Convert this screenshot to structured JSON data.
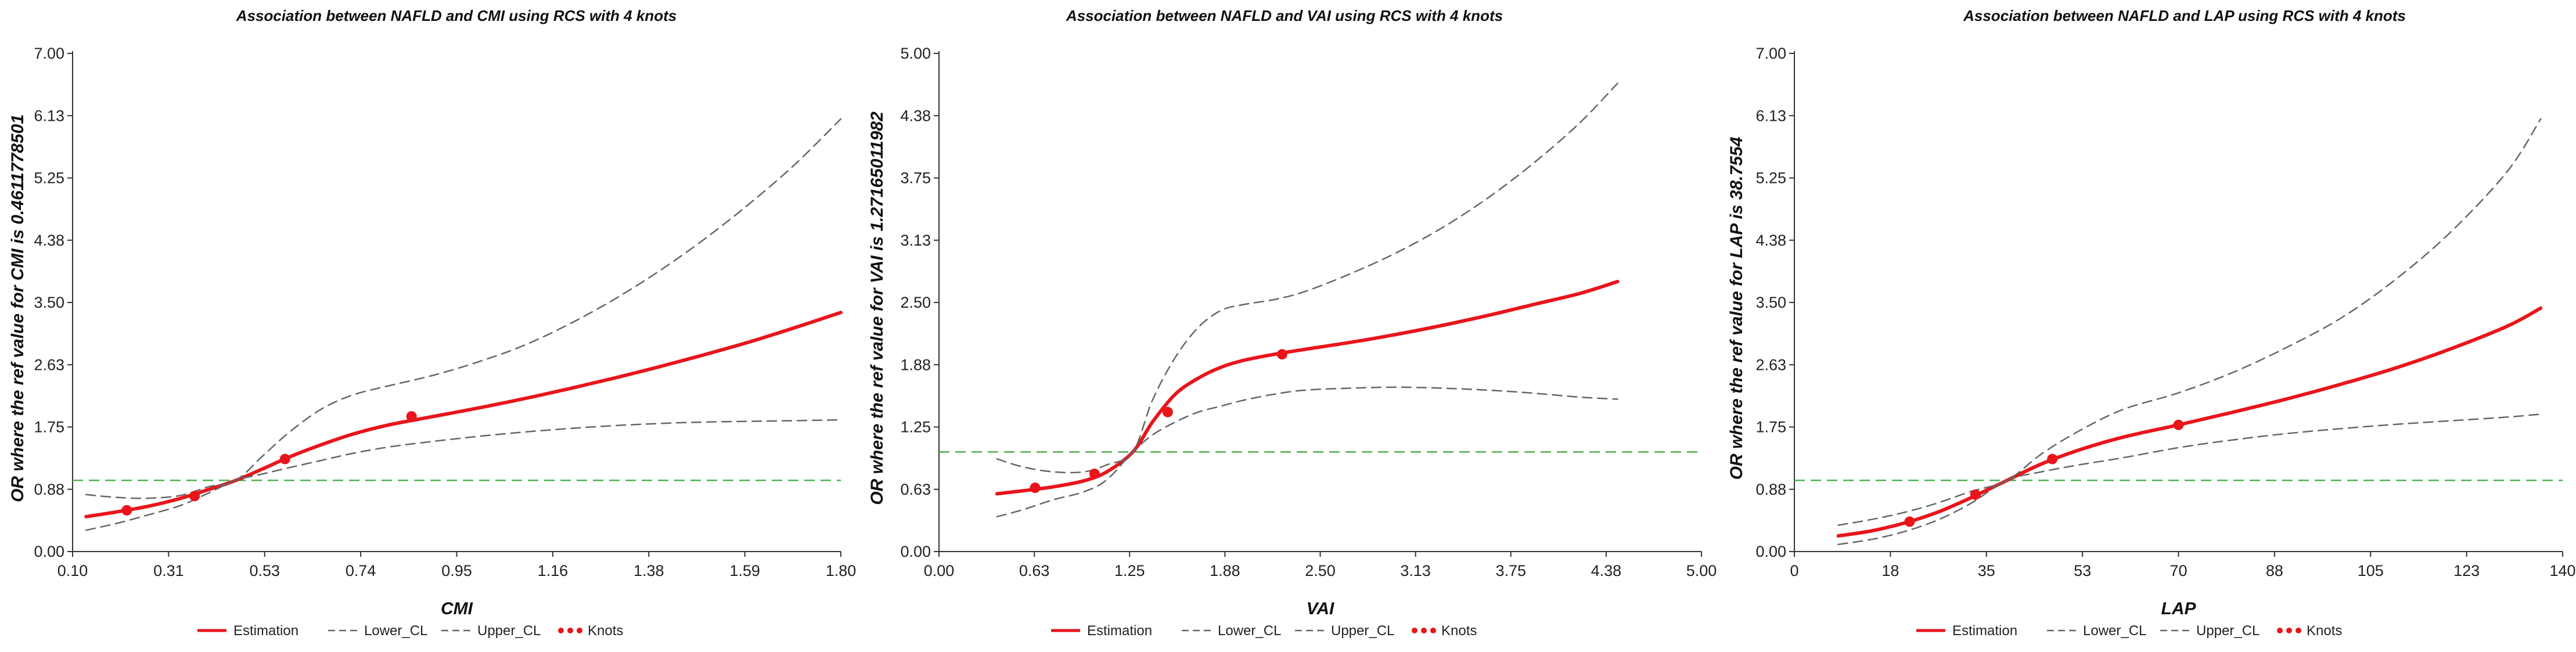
{
  "colors": {
    "estimation": "#e8151b",
    "ci": "#666666",
    "reference": "#4caf50",
    "axis": "#333333"
  },
  "legend_items": [
    "Estimation",
    "Lower_CL",
    "Upper_CL",
    "Knots"
  ],
  "chart_data": [
    {
      "type": "line",
      "title": "Association between NAFLD and CMI using RCS with 4 knots",
      "xlabel": "CMI",
      "ylabel": "OR where the ref value for CMI is 0.4611778501",
      "xlim": [
        0.1,
        1.8
      ],
      "ylim": [
        0.0,
        7.0
      ],
      "xticks": [
        "0.10",
        "0.31",
        "0.53",
        "0.74",
        "0.95",
        "1.16",
        "1.38",
        "1.59",
        "1.80"
      ],
      "yticks": [
        "0.00",
        "0.88",
        "1.75",
        "2.63",
        "3.50",
        "4.38",
        "5.25",
        "6.13",
        "7.00"
      ],
      "reference_line": 1.0,
      "x": [
        0.13,
        0.2,
        0.27,
        0.34,
        0.4,
        0.4612,
        0.52,
        0.58,
        0.65,
        0.72,
        0.8,
        0.9,
        1.0,
        1.1,
        1.2,
        1.3,
        1.4,
        1.5,
        1.6,
        1.7,
        1.8
      ],
      "series": [
        {
          "name": "Estimation",
          "values": [
            0.49,
            0.56,
            0.64,
            0.75,
            0.87,
            1.0,
            1.16,
            1.33,
            1.5,
            1.65,
            1.78,
            1.9,
            2.02,
            2.15,
            2.29,
            2.44,
            2.6,
            2.77,
            2.95,
            3.15,
            3.36
          ]
        },
        {
          "name": "Lower_CL",
          "values": [
            0.3,
            0.4,
            0.52,
            0.65,
            0.82,
            1.0,
            1.09,
            1.18,
            1.28,
            1.38,
            1.47,
            1.55,
            1.62,
            1.68,
            1.73,
            1.77,
            1.8,
            1.82,
            1.83,
            1.84,
            1.85
          ]
        },
        {
          "name": "Upper_CL",
          "values": [
            0.8,
            0.76,
            0.75,
            0.79,
            0.91,
            1.0,
            1.34,
            1.68,
            2.0,
            2.2,
            2.33,
            2.48,
            2.67,
            2.9,
            3.2,
            3.55,
            3.95,
            4.4,
            4.9,
            5.45,
            6.08
          ]
        },
        {
          "name": "Knots",
          "points": [
            [
              0.22,
              0.58
            ],
            [
              0.37,
              0.78
            ],
            [
              0.57,
              1.3
            ],
            [
              0.85,
              1.9
            ]
          ]
        }
      ]
    },
    {
      "type": "line",
      "title": "Association between NAFLD and VAI using RCS with 4 knots",
      "xlabel": "VAI",
      "ylabel": "OR where the ref value for VAI is 1.27165011982",
      "xlim": [
        0.0,
        5.0
      ],
      "ylim": [
        0.0,
        5.0
      ],
      "xticks": [
        "0.00",
        "0.63",
        "1.25",
        "1.88",
        "2.50",
        "3.13",
        "3.75",
        "4.38",
        "5.00"
      ],
      "yticks": [
        "0.00",
        "0.63",
        "1.25",
        "1.88",
        "2.50",
        "3.13",
        "3.75",
        "4.38",
        "5.00"
      ],
      "reference_line": 1.0,
      "x": [
        0.38,
        0.55,
        0.75,
        0.95,
        1.1,
        1.2717,
        1.4,
        1.55,
        1.7,
        1.85,
        2.0,
        2.2,
        2.4,
        2.7,
        3.0,
        3.3,
        3.6,
        3.9,
        4.2,
        4.45
      ],
      "series": [
        {
          "name": "Estimation",
          "values": [
            0.58,
            0.61,
            0.65,
            0.71,
            0.8,
            1.0,
            1.3,
            1.58,
            1.74,
            1.85,
            1.92,
            1.98,
            2.03,
            2.1,
            2.18,
            2.27,
            2.37,
            2.48,
            2.59,
            2.71
          ]
        },
        {
          "name": "Lower_CL",
          "values": [
            0.35,
            0.42,
            0.52,
            0.6,
            0.72,
            1.0,
            1.17,
            1.3,
            1.4,
            1.46,
            1.52,
            1.58,
            1.62,
            1.64,
            1.65,
            1.64,
            1.62,
            1.59,
            1.55,
            1.53
          ]
        },
        {
          "name": "Upper_CL",
          "values": [
            0.93,
            0.85,
            0.8,
            0.8,
            0.87,
            1.0,
            1.52,
            1.95,
            2.25,
            2.42,
            2.48,
            2.53,
            2.61,
            2.79,
            3.0,
            3.25,
            3.55,
            3.9,
            4.3,
            4.7
          ]
        },
        {
          "name": "Knots",
          "points": [
            [
              0.63,
              0.64
            ],
            [
              1.02,
              0.78
            ],
            [
              1.5,
              1.4
            ],
            [
              2.25,
              1.98
            ]
          ]
        }
      ]
    },
    {
      "type": "line",
      "title": "Association between NAFLD and LAP using RCS with 4 knots",
      "xlabel": "LAP",
      "ylabel": "OR where the ref value for LAP is 38.7554",
      "xlim": [
        0,
        140
      ],
      "ylim": [
        0.0,
        7.0
      ],
      "xticks": [
        "0",
        "18",
        "35",
        "53",
        "70",
        "88",
        "105",
        "123",
        "140"
      ],
      "yticks": [
        "0.00",
        "0.88",
        "1.75",
        "2.63",
        "3.50",
        "4.38",
        "5.25",
        "6.13",
        "7.00"
      ],
      "reference_line": 1.0,
      "x": [
        8,
        14,
        20,
        26,
        32,
        38.7554,
        45,
        52,
        60,
        70,
        80,
        90,
        100,
        110,
        120,
        130,
        136
      ],
      "series": [
        {
          "name": "Estimation",
          "values": [
            0.22,
            0.29,
            0.4,
            0.55,
            0.75,
            1.0,
            1.23,
            1.43,
            1.61,
            1.78,
            1.96,
            2.15,
            2.36,
            2.59,
            2.86,
            3.17,
            3.42
          ]
        },
        {
          "name": "Lower_CL",
          "values": [
            0.1,
            0.17,
            0.28,
            0.44,
            0.67,
            1.0,
            1.12,
            1.22,
            1.32,
            1.46,
            1.57,
            1.66,
            1.73,
            1.79,
            1.84,
            1.89,
            1.93
          ]
        },
        {
          "name": "Upper_CL",
          "values": [
            0.37,
            0.45,
            0.55,
            0.68,
            0.84,
            1.0,
            1.37,
            1.7,
            2.0,
            2.23,
            2.52,
            2.88,
            3.3,
            3.85,
            4.52,
            5.35,
            6.08
          ]
        },
        {
          "name": "Knots",
          "points": [
            [
              21,
              0.42
            ],
            [
              33,
              0.8
            ],
            [
              47,
              1.3
            ],
            [
              70,
              1.78
            ]
          ]
        }
      ]
    }
  ]
}
